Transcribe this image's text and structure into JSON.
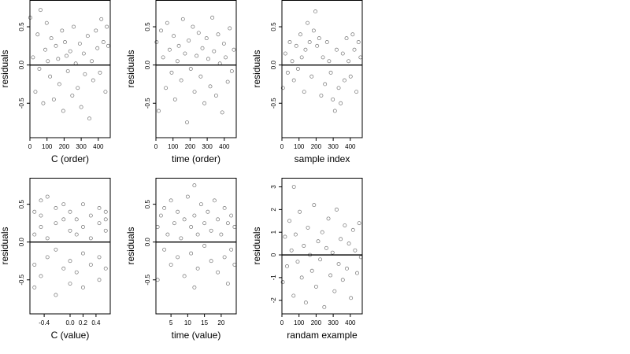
{
  "chart_data": [
    {
      "type": "scatter",
      "xlabel": "C (order)",
      "ylabel": "residuals",
      "xlim": [
        0,
        470
      ],
      "ylim": [
        -0.95,
        0.85
      ],
      "xticks": [
        0,
        100,
        200,
        300,
        400
      ],
      "xtick_labels": [
        "0",
        "100",
        "200",
        "300",
        "400"
      ],
      "yticks": [
        -0.5,
        0.0,
        0.5
      ],
      "ytick_labels": [
        "-0.5",
        "0.0",
        "0.5"
      ],
      "hline": 0,
      "x": [
        2,
        18,
        32,
        45,
        55,
        62,
        78,
        90,
        98,
        105,
        118,
        125,
        140,
        152,
        165,
        172,
        188,
        195,
        205,
        214,
        222,
        236,
        248,
        256,
        268,
        280,
        292,
        300,
        315,
        322,
        338,
        348,
        362,
        370,
        386,
        395,
        410,
        418,
        430,
        442,
        450,
        458
      ],
      "y": [
        0.62,
        0.1,
        -0.35,
        0.4,
        -0.05,
        0.72,
        -0.5,
        0.2,
        0.55,
        0.05,
        -0.15,
        0.35,
        -0.45,
        0.25,
        0.08,
        -0.25,
        0.45,
        -0.6,
        0.3,
        0.12,
        -0.08,
        0.18,
        -0.4,
        0.5,
        0.02,
        -0.3,
        0.28,
        -0.55,
        0.15,
        -0.12,
        0.38,
        -0.7,
        0.05,
        -0.2,
        0.45,
        0.22,
        -0.1,
        0.6,
        0.3,
        -0.35,
        0.5,
        0.25
      ]
    },
    {
      "type": "scatter",
      "xlabel": "time (order)",
      "ylabel": "residuals",
      "xlim": [
        0,
        470
      ],
      "ylim": [
        -0.95,
        0.85
      ],
      "xticks": [
        0,
        100,
        200,
        300,
        400
      ],
      "xtick_labels": [
        "0",
        "100",
        "200",
        "300",
        "400"
      ],
      "yticks": [
        -0.5,
        0.0,
        0.5
      ],
      "ytick_labels": [
        "-0.5",
        "0.0",
        "0.5"
      ],
      "hline": 0,
      "x": [
        4,
        16,
        30,
        42,
        58,
        66,
        80,
        92,
        104,
        112,
        126,
        134,
        148,
        158,
        170,
        182,
        192,
        204,
        216,
        226,
        238,
        250,
        262,
        272,
        284,
        296,
        306,
        318,
        330,
        340,
        352,
        364,
        374,
        388,
        398,
        408,
        420,
        432,
        444,
        456
      ],
      "y": [
        0.3,
        -0.6,
        0.45,
        0.1,
        -0.3,
        0.55,
        0.2,
        -0.1,
        0.38,
        -0.45,
        0.05,
        0.25,
        -0.2,
        0.6,
        0.15,
        -0.75,
        0.32,
        -0.05,
        0.5,
        -0.35,
        0.12,
        0.42,
        -0.15,
        0.22,
        -0.5,
        0.35,
        0.08,
        -0.28,
        0.62,
        0.18,
        -0.4,
        0.4,
        0.02,
        -0.62,
        0.28,
        0.1,
        -0.22,
        0.48,
        -0.08,
        0.2
      ]
    },
    {
      "type": "scatter",
      "xlabel": "sample index",
      "ylabel": "residuals",
      "xlim": [
        0,
        470
      ],
      "ylim": [
        -0.95,
        0.85
      ],
      "xticks": [
        0,
        100,
        200,
        300,
        400
      ],
      "xtick_labels": [
        "0",
        "100",
        "200",
        "300",
        "400"
      ],
      "yticks": [
        -0.5,
        0.0,
        0.5
      ],
      "ytick_labels": [
        "-0.5",
        "0.0",
        "0.5"
      ],
      "hline": 0,
      "x": [
        6,
        20,
        34,
        46,
        60,
        70,
        84,
        94,
        108,
        116,
        130,
        138,
        150,
        162,
        174,
        186,
        196,
        206,
        218,
        230,
        240,
        252,
        264,
        276,
        286,
        298,
        310,
        320,
        332,
        344,
        356,
        366,
        378,
        390,
        402,
        414,
        424,
        436,
        448,
        460
      ],
      "y": [
        -0.3,
        0.15,
        -0.1,
        0.3,
        0.05,
        -0.2,
        0.25,
        -0.05,
        0.4,
        0.1,
        -0.35,
        0.2,
        0.55,
        0.3,
        -0.15,
        0.45,
        0.7,
        0.25,
        0.35,
        -0.4,
        0.1,
        -0.25,
        0.3,
        0.05,
        -0.1,
        -0.45,
        -0.6,
        0.2,
        -0.3,
        -0.5,
        0.15,
        -0.2,
        0.35,
        0.05,
        -0.15,
        0.4,
        0.2,
        -0.35,
        0.3,
        0.1
      ]
    },
    {
      "type": "scatter",
      "xlabel": "C (value)",
      "ylabel": "residuals",
      "xlim": [
        -0.62,
        0.62
      ],
      "ylim": [
        -0.95,
        0.85
      ],
      "xticks": [
        -0.4,
        0.0,
        0.2,
        0.4
      ],
      "xtick_labels": [
        "-0.4",
        "0.0",
        "0.2",
        "0.4"
      ],
      "yticks": [
        -0.5,
        0.0,
        0.5
      ],
      "ytick_labels": [
        "-0.5",
        "0.0",
        "0.5"
      ],
      "hline": 0,
      "x": [
        -0.55,
        -0.55,
        -0.55,
        -0.55,
        -0.45,
        -0.45,
        -0.45,
        -0.45,
        -0.35,
        -0.35,
        -0.35,
        -0.22,
        -0.22,
        -0.22,
        -0.22,
        -0.1,
        -0.1,
        -0.1,
        0.0,
        0.0,
        0.0,
        0.0,
        0.1,
        0.1,
        0.1,
        0.2,
        0.2,
        0.2,
        0.2,
        0.32,
        0.32,
        0.32,
        0.45,
        0.45,
        0.45,
        0.45,
        0.55,
        0.55,
        0.55,
        0.55
      ],
      "y": [
        0.4,
        -0.3,
        0.1,
        -0.6,
        0.55,
        0.2,
        -0.45,
        0.35,
        0.05,
        -0.2,
        0.6,
        0.45,
        -0.1,
        0.25,
        -0.7,
        0.3,
        -0.35,
        0.5,
        0.4,
        -0.25,
        0.15,
        -0.55,
        0.1,
        -0.4,
        0.3,
        0.5,
        -0.15,
        0.2,
        -0.6,
        0.35,
        -0.3,
        0.05,
        0.45,
        -0.2,
        0.25,
        -0.5,
        0.4,
        0.15,
        -0.35,
        0.3
      ]
    },
    {
      "type": "scatter",
      "xlabel": "time (value)",
      "ylabel": "residuals",
      "xlim": [
        0.5,
        24.5
      ],
      "ylim": [
        -0.95,
        0.85
      ],
      "xticks": [
        5,
        10,
        15,
        20
      ],
      "xtick_labels": [
        "5",
        "10",
        "15",
        "20"
      ],
      "yticks": [
        -0.5,
        0.0,
        0.5
      ],
      "ytick_labels": [
        "-0.5",
        "0.0",
        "0.5"
      ],
      "hline": 0,
      "x": [
        1,
        1,
        2,
        3,
        3,
        4,
        5,
        5,
        6,
        7,
        7,
        8,
        9,
        9,
        10,
        11,
        11,
        12,
        12,
        13,
        13,
        14,
        15,
        15,
        16,
        17,
        17,
        18,
        19,
        19,
        20,
        21,
        21,
        22,
        22,
        23,
        23,
        24,
        24,
        12
      ],
      "y": [
        0.2,
        -0.5,
        0.35,
        -0.1,
        0.45,
        0.1,
        -0.3,
        0.55,
        0.25,
        -0.2,
        0.4,
        0.05,
        -0.45,
        0.3,
        0.6,
        -0.15,
        0.2,
        -0.6,
        0.35,
        0.1,
        -0.35,
        0.5,
        -0.05,
        0.25,
        0.4,
        -0.25,
        0.15,
        0.55,
        -0.4,
        0.3,
        0.1,
        -0.2,
        0.45,
        0.25,
        -0.55,
        0.35,
        -0.1,
        0.2,
        -0.3,
        0.75
      ]
    },
    {
      "type": "scatter",
      "xlabel": "randam example",
      "ylabel": "residuals",
      "xlim": [
        0,
        470
      ],
      "ylim": [
        -2.6,
        3.4
      ],
      "xticks": [
        0,
        100,
        200,
        300,
        400
      ],
      "xtick_labels": [
        "0",
        "100",
        "200",
        "300",
        "400"
      ],
      "yticks": [
        -2,
        -1,
        0,
        1,
        2,
        3
      ],
      "ytick_labels": [
        "-2",
        "-1",
        "0",
        "1",
        "2",
        "3"
      ],
      "hline": 0,
      "x": [
        5,
        18,
        30,
        44,
        56,
        68,
        80,
        92,
        104,
        116,
        128,
        140,
        152,
        164,
        176,
        188,
        200,
        212,
        224,
        236,
        248,
        260,
        272,
        284,
        296,
        308,
        320,
        332,
        344,
        356,
        368,
        380,
        392,
        404,
        416,
        428,
        440,
        452,
        462,
        70
      ],
      "y": [
        -1.2,
        0.8,
        -0.5,
        1.5,
        0.2,
        -1.8,
        0.9,
        -0.3,
        1.9,
        -1.0,
        0.4,
        -2.1,
        1.2,
        0.0,
        -0.7,
        2.2,
        -1.4,
        0.6,
        -0.2,
        1.0,
        -2.3,
        0.3,
        1.6,
        -0.9,
        0.1,
        -1.6,
        2.0,
        -0.4,
        0.7,
        -1.1,
        1.3,
        -0.6,
        0.5,
        -1.9,
        1.1,
        0.2,
        -0.8,
        1.4,
        -0.1,
        3.0
      ]
    }
  ]
}
